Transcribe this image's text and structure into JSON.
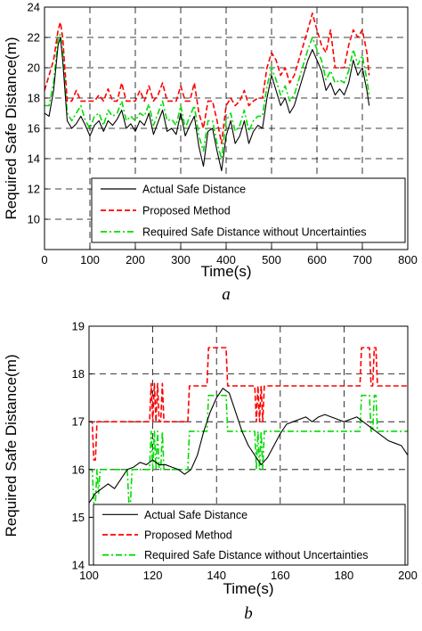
{
  "chart_data": [
    {
      "type": "line",
      "panel_label": "a",
      "xlabel": "Time(s)",
      "ylabel": "Required Safe Distance(m)",
      "xlim": [
        0,
        800
      ],
      "ylim": [
        8,
        24
      ],
      "xticks": [
        0,
        100,
        200,
        300,
        400,
        500,
        600,
        700,
        800
      ],
      "yticks": [
        10,
        12,
        14,
        16,
        18,
        20,
        22,
        24
      ],
      "grid": true,
      "legend_position": "bottom-right",
      "colors": {
        "actual": "#000000",
        "proposed": "#ff0000",
        "without": "#00dd00"
      },
      "series": [
        {
          "name": "Actual Safe Distance",
          "style": "solid",
          "x": [
            0,
            10,
            20,
            30,
            35,
            40,
            50,
            60,
            70,
            80,
            90,
            100,
            110,
            120,
            130,
            140,
            150,
            160,
            170,
            180,
            190,
            200,
            210,
            220,
            230,
            240,
            250,
            260,
            270,
            280,
            290,
            300,
            310,
            320,
            330,
            340,
            350,
            360,
            370,
            380,
            390,
            400,
            410,
            420,
            430,
            440,
            450,
            460,
            470,
            480,
            490,
            500,
            510,
            520,
            530,
            540,
            550,
            560,
            570,
            580,
            590,
            600,
            610,
            620,
            630,
            640,
            650,
            660,
            670,
            680,
            690,
            700,
            710,
            715
          ],
          "y": [
            17.0,
            16.8,
            18.5,
            21.5,
            22.0,
            20.5,
            16.5,
            16.0,
            16.3,
            16.8,
            16.2,
            15.5,
            16.2,
            16.5,
            15.8,
            16.5,
            16.2,
            16.6,
            17.2,
            16.0,
            16.3,
            15.8,
            16.5,
            16.2,
            17.0,
            15.6,
            16.4,
            17.2,
            15.8,
            16.0,
            15.6,
            17.0,
            15.5,
            16.2,
            16.8,
            14.8,
            13.5,
            15.8,
            16.0,
            14.5,
            13.2,
            15.5,
            16.5,
            15.0,
            15.5,
            16.5,
            15.0,
            15.8,
            16.2,
            16.0,
            18.0,
            19.5,
            18.5,
            17.5,
            18.0,
            17.0,
            17.5,
            18.5,
            19.5,
            20.5,
            21.2,
            20.5,
            19.8,
            18.5,
            19.0,
            18.2,
            18.6,
            18.2,
            19.0,
            20.5,
            19.5,
            20.0,
            18.5,
            17.5
          ]
        },
        {
          "name": "Proposed Method",
          "style": "dashed",
          "x": [
            0,
            10,
            20,
            30,
            35,
            40,
            50,
            60,
            70,
            80,
            90,
            100,
            110,
            120,
            130,
            140,
            150,
            160,
            170,
            180,
            190,
            200,
            210,
            220,
            230,
            240,
            250,
            260,
            270,
            280,
            290,
            300,
            310,
            320,
            330,
            340,
            350,
            360,
            370,
            380,
            390,
            400,
            410,
            420,
            430,
            440,
            450,
            460,
            470,
            480,
            490,
            500,
            510,
            520,
            530,
            540,
            550,
            560,
            570,
            580,
            590,
            600,
            610,
            620,
            630,
            640,
            650,
            660,
            670,
            680,
            690,
            700,
            710,
            715
          ],
          "y": [
            18.5,
            19.5,
            20.5,
            22.5,
            23.0,
            22.0,
            17.8,
            17.8,
            18.5,
            17.8,
            17.8,
            17.8,
            17.8,
            18.2,
            17.8,
            18.6,
            17.8,
            17.8,
            19.0,
            17.8,
            17.8,
            17.8,
            18.5,
            17.8,
            18.8,
            17.8,
            18.2,
            19.0,
            17.8,
            17.8,
            17.8,
            18.8,
            17.8,
            17.8,
            19.0,
            17.0,
            16.0,
            17.8,
            17.8,
            16.5,
            15.0,
            17.5,
            18.0,
            17.5,
            17.8,
            18.5,
            17.5,
            17.8,
            18.0,
            18.0,
            20.0,
            21.0,
            20.5,
            19.5,
            20.0,
            19.0,
            19.5,
            20.5,
            21.5,
            22.5,
            23.6,
            22.5,
            21.5,
            21.0,
            22.5,
            20.0,
            20.0,
            20.0,
            21.5,
            22.5,
            22.0,
            22.5,
            21.0,
            19.5
          ]
        },
        {
          "name": "Required Safe Distance without Uncertainties",
          "style": "dashdot",
          "x": [
            0,
            10,
            20,
            30,
            35,
            40,
            50,
            60,
            70,
            80,
            90,
            100,
            110,
            120,
            130,
            140,
            150,
            160,
            170,
            180,
            190,
            200,
            210,
            220,
            230,
            240,
            250,
            260,
            270,
            280,
            290,
            300,
            310,
            320,
            330,
            340,
            350,
            360,
            370,
            380,
            390,
            400,
            410,
            420,
            430,
            440,
            450,
            460,
            470,
            480,
            490,
            500,
            510,
            520,
            530,
            540,
            550,
            560,
            570,
            580,
            590,
            600,
            610,
            620,
            630,
            640,
            650,
            660,
            670,
            680,
            690,
            700,
            710,
            715
          ],
          "y": [
            17.5,
            17.5,
            19.0,
            22.0,
            22.2,
            21.0,
            17.0,
            16.5,
            17.0,
            17.5,
            16.5,
            16.0,
            16.8,
            17.0,
            16.2,
            17.2,
            16.8,
            17.0,
            17.8,
            16.5,
            16.8,
            16.5,
            17.0,
            16.8,
            17.6,
            16.2,
            17.0,
            17.8,
            16.5,
            16.6,
            16.2,
            17.5,
            16.0,
            16.8,
            17.5,
            15.5,
            14.5,
            16.5,
            16.5,
            15.0,
            14.0,
            16.5,
            17.0,
            15.8,
            16.2,
            17.2,
            15.8,
            16.5,
            16.8,
            16.8,
            18.8,
            20.0,
            19.2,
            18.2,
            18.8,
            17.8,
            18.2,
            19.2,
            20.2,
            21.2,
            22.0,
            21.2,
            20.5,
            19.2,
            19.8,
            19.0,
            19.2,
            19.0,
            19.8,
            21.2,
            20.2,
            20.8,
            19.2,
            18.2
          ]
        }
      ]
    },
    {
      "type": "line",
      "panel_label": "b",
      "xlabel": "Time(s)",
      "ylabel": "Required Safe Distance(m)",
      "xlim": [
        100,
        200
      ],
      "ylim": [
        14,
        19
      ],
      "xticks": [
        100,
        120,
        140,
        160,
        180,
        200
      ],
      "yticks": [
        14,
        15,
        16,
        17,
        18,
        19
      ],
      "grid": true,
      "legend_position": "bottom-right",
      "colors": {
        "actual": "#000000",
        "proposed": "#ff0000",
        "without": "#00dd00"
      },
      "series": [
        {
          "name": "Actual Safe Distance",
          "style": "solid",
          "x": [
            100,
            102,
            104,
            106,
            108,
            110,
            112,
            114,
            116,
            118,
            120,
            122,
            124,
            126,
            128,
            130,
            132,
            134,
            136,
            138,
            140,
            142,
            144,
            146,
            148,
            150,
            152,
            154,
            156,
            158,
            160,
            162,
            164,
            166,
            168,
            170,
            172,
            174,
            176,
            178,
            180,
            182,
            184,
            186,
            188,
            190,
            192,
            194,
            196,
            198,
            200
          ],
          "y": [
            15.3,
            15.5,
            15.6,
            15.7,
            15.6,
            15.8,
            16.0,
            16.05,
            16.15,
            16.1,
            16.2,
            16.1,
            16.1,
            16.05,
            16.0,
            15.9,
            16.0,
            16.3,
            16.8,
            17.2,
            17.5,
            17.7,
            17.6,
            17.2,
            16.8,
            16.5,
            16.3,
            16.1,
            16.25,
            16.5,
            16.75,
            16.95,
            17.0,
            17.05,
            17.1,
            17.0,
            17.1,
            17.15,
            17.1,
            17.05,
            17.0,
            17.05,
            17.1,
            17.0,
            16.9,
            16.8,
            16.7,
            16.6,
            16.55,
            16.5,
            16.3
          ]
        },
        {
          "name": "Proposed Method",
          "style": "dashed",
          "x": [
            100,
            101,
            101.5,
            102,
            102.5,
            103,
            103.5,
            119,
            119.5,
            120,
            120.5,
            121,
            121.5,
            122,
            122.5,
            123,
            123.5,
            131,
            131.5,
            137,
            137.5,
            143,
            143.5,
            152,
            152.5,
            153,
            153.5,
            154,
            154.5,
            155,
            155.5,
            185,
            185.5,
            188,
            188.5,
            189,
            189.5,
            190,
            190.5,
            200
          ],
          "y": [
            17.0,
            17.0,
            16.2,
            16.2,
            17.0,
            17.0,
            17.0,
            17.0,
            17.8,
            17.0,
            17.8,
            17.0,
            17.8,
            17.0,
            17.0,
            17.8,
            17.0,
            17.0,
            17.75,
            17.75,
            18.55,
            18.55,
            17.75,
            17.75,
            17.0,
            17.75,
            17.0,
            17.75,
            17.0,
            17.75,
            17.75,
            17.75,
            18.55,
            18.55,
            17.75,
            17.75,
            18.55,
            18.55,
            17.75,
            17.75
          ]
        },
        {
          "name": "Required Safe Distance without Uncertainties",
          "style": "dashdot",
          "x": [
            100,
            101,
            101.5,
            102,
            102.5,
            103,
            103.5,
            112,
            112.5,
            113,
            113.5,
            119,
            119.5,
            120,
            120.5,
            121,
            121.5,
            122,
            122.5,
            123,
            123.5,
            131,
            131.5,
            137,
            137.5,
            143,
            143.5,
            152,
            152.5,
            153,
            153.5,
            154,
            154.5,
            155,
            155.5,
            185,
            185.5,
            188,
            188.5,
            189,
            189.5,
            190,
            190.5,
            200
          ],
          "y": [
            16.0,
            16.0,
            15.3,
            15.3,
            16.0,
            15.5,
            16.0,
            16.0,
            15.3,
            15.3,
            16.0,
            16.0,
            16.8,
            16.0,
            16.8,
            16.0,
            16.8,
            16.0,
            16.0,
            16.8,
            16.0,
            16.0,
            16.8,
            16.8,
            17.55,
            17.55,
            16.8,
            16.8,
            16.0,
            16.8,
            16.0,
            16.8,
            16.0,
            16.8,
            16.8,
            16.8,
            17.55,
            17.55,
            16.8,
            16.8,
            17.55,
            17.55,
            16.8,
            16.8
          ]
        }
      ]
    }
  ]
}
